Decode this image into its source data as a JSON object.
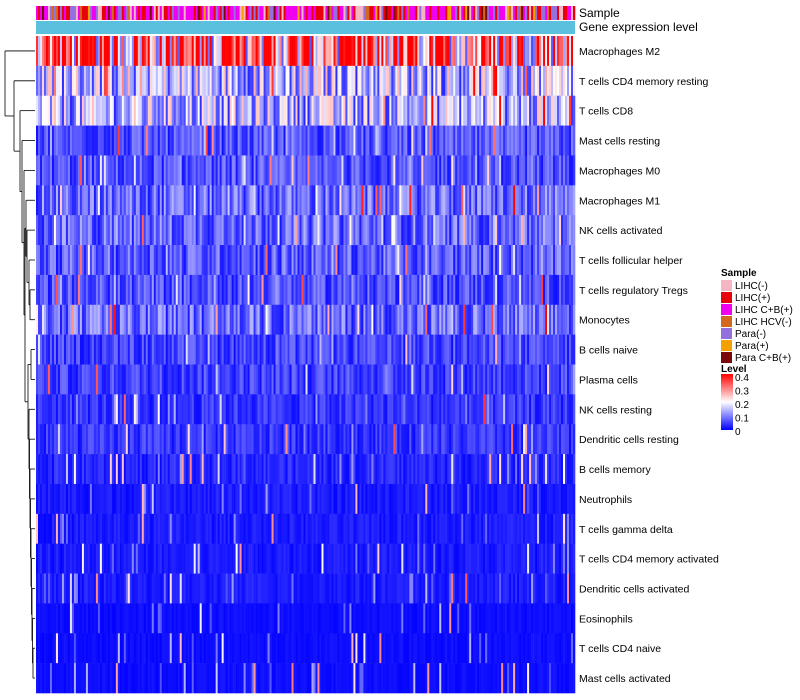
{
  "chart_data": {
    "type": "heatmap",
    "annotation_tracks": [
      "Sample",
      "Gene expression level"
    ],
    "rows": [
      {
        "name": "Macrophages M2",
        "mean_level": 0.3
      },
      {
        "name": "T cells CD4 memory resting",
        "mean_level": 0.15
      },
      {
        "name": "T cells CD8",
        "mean_level": 0.14
      },
      {
        "name": "Mast cells resting",
        "mean_level": 0.06
      },
      {
        "name": "Macrophages M0",
        "mean_level": 0.06
      },
      {
        "name": "Macrophages M1",
        "mean_level": 0.08
      },
      {
        "name": "NK cells activated",
        "mean_level": 0.08
      },
      {
        "name": "T cells follicular helper",
        "mean_level": 0.07
      },
      {
        "name": "T cells regulatory  Tregs",
        "mean_level": 0.06
      },
      {
        "name": "Monocytes",
        "mean_level": 0.08
      },
      {
        "name": "B cells naive",
        "mean_level": 0.05
      },
      {
        "name": "Plasma cells",
        "mean_level": 0.05
      },
      {
        "name": "NK cells resting",
        "mean_level": 0.04
      },
      {
        "name": "Dendritic cells resting",
        "mean_level": 0.04
      },
      {
        "name": "B cells memory",
        "mean_level": 0.03
      },
      {
        "name": "Neutrophils",
        "mean_level": 0.02
      },
      {
        "name": "T cells gamma delta",
        "mean_level": 0.02
      },
      {
        "name": "T cells CD4 memory activated",
        "mean_level": 0.02
      },
      {
        "name": "Dendritic cells activated",
        "mean_level": 0.02
      },
      {
        "name": "Eosinophils",
        "mean_level": 0.01
      },
      {
        "name": "T cells CD4 naive",
        "mean_level": 0.01
      },
      {
        "name": "Mast cells activated",
        "mean_level": 0.01
      }
    ],
    "legend": {
      "sample_title": "Sample",
      "sample_groups": [
        {
          "label": "LIHC(-)",
          "color": "#F4B6C2"
        },
        {
          "label": "LIHC(+)",
          "color": "#E8000B"
        },
        {
          "label": "LIHC C+B(+)",
          "color": "#F000F0"
        },
        {
          "label": "LIHC HCV(-)",
          "color": "#D2691E"
        },
        {
          "label": "Para(-)",
          "color": "#9370DB"
        },
        {
          "label": "Para(+)",
          "color": "#F5A000"
        },
        {
          "label": "Para C+B(+)",
          "color": "#7A0A0A"
        }
      ],
      "level_title": "Level",
      "level_ticks": [
        "0.4",
        "0.3",
        "0.2",
        "0.1",
        "0"
      ],
      "level_range": [
        0,
        0.4
      ]
    },
    "colors": {
      "low": "#0000FF",
      "mid": "#FFFFFF",
      "high": "#FF0000",
      "expression_track": "#5BC0DE",
      "dendrogram": "#000000"
    }
  }
}
